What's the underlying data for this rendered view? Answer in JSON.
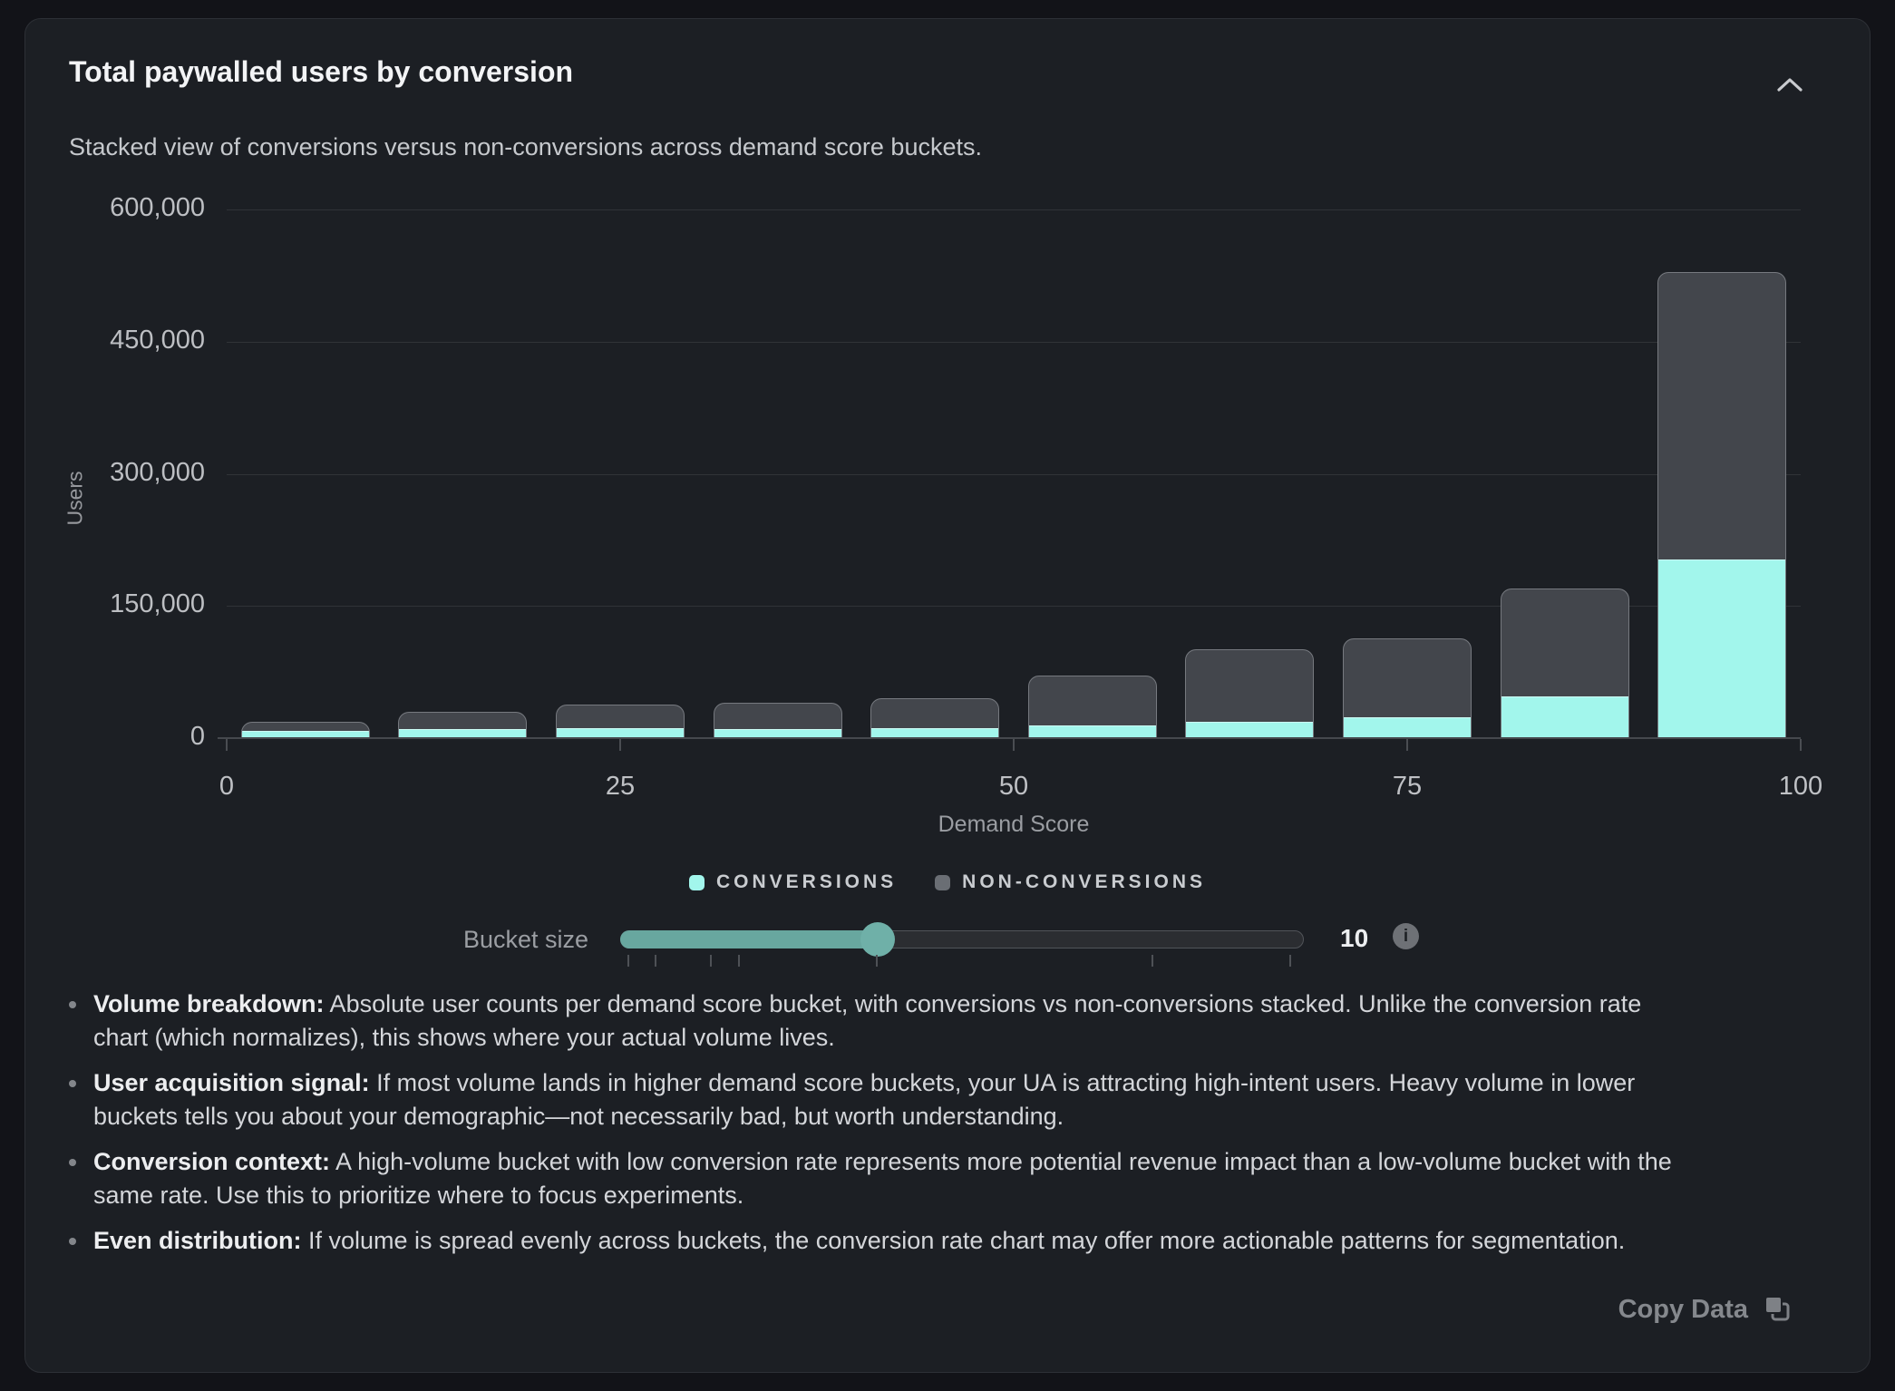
{
  "card": {
    "title": "Total paywalled users by conversion",
    "subtitle": "Stacked view of conversions versus non-conversions across demand score buckets."
  },
  "chart_data": {
    "type": "bar",
    "stacked": true,
    "title": "Total paywalled users by conversion",
    "xlabel": "Demand Score",
    "ylabel": "Users",
    "xlim": [
      0,
      100
    ],
    "ylim": [
      0,
      600000
    ],
    "x_ticks": [
      0,
      25,
      50,
      75,
      100
    ],
    "y_ticks": [
      0,
      150000,
      300000,
      450000,
      600000
    ],
    "y_tick_labels": [
      "0",
      "150,000",
      "300,000",
      "450,000",
      "600,000"
    ],
    "grid": "horizontal",
    "legend_position": "bottom",
    "bucket_size": 10,
    "categories": [
      "0-10",
      "10-20",
      "20-30",
      "30-40",
      "40-50",
      "50-60",
      "60-70",
      "70-80",
      "80-90",
      "90-100"
    ],
    "series": [
      {
        "name": "CONVERSIONS",
        "color": "#a2f6ec",
        "values": [
          7500,
          9000,
          10000,
          9500,
          10500,
          13000,
          17000,
          23000,
          46000,
          202000
        ]
      },
      {
        "name": "NON-CONVERSIONS",
        "color": "#43464c",
        "values": [
          10500,
          19500,
          27000,
          30000,
          34000,
          57000,
          83000,
          89000,
          123000,
          326000
        ]
      }
    ]
  },
  "legend": {
    "items": [
      {
        "label": "CONVERSIONS",
        "color": "#a2f6ec"
      },
      {
        "label": "NON-CONVERSIONS",
        "color": "#6a6e74"
      }
    ]
  },
  "slider": {
    "label": "Bucket size",
    "value": "10",
    "min": 1,
    "max": 25,
    "tick_values": [
      1,
      2,
      4,
      5,
      10,
      20,
      25
    ],
    "fill_color": "#68a79f",
    "thumb_color": "#6fb0a8",
    "info_icon_glyph": "i"
  },
  "notes": [
    {
      "lead": "Volume breakdown:",
      "text": "Absolute user counts per demand score bucket, with conversions vs non-conversions stacked. Unlike the conversion rate chart (which normalizes), this shows where your actual volume lives."
    },
    {
      "lead": "User acquisition signal:",
      "text": "If most volume lands in higher demand score buckets, your UA is attracting high-intent users. Heavy volume in lower buckets tells you about your demographic—not necessarily bad, but worth understanding."
    },
    {
      "lead": "Conversion context:",
      "text": "A high-volume bucket with low conversion rate represents more potential revenue impact than a low-volume bucket with the same rate. Use this to prioritize where to focus experiments."
    },
    {
      "lead": "Even distribution:",
      "text": "If volume is spread evenly across buckets, the conversion rate chart may offer more actionable patterns for segmentation."
    }
  ],
  "footer": {
    "copy_label": "Copy Data"
  }
}
